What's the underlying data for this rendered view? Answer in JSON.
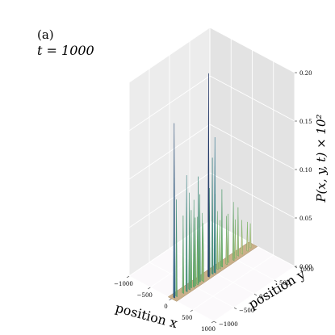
{
  "panel": {
    "label": "(a)",
    "time_label": "t = 1000"
  },
  "chart_data": {
    "type": "surface3d",
    "title": "",
    "xlabel": "position x",
    "ylabel": "position y",
    "zlabel": "P(x, y, t) × 10²",
    "xlim": [
      -1000,
      1000
    ],
    "ylim": [
      -1000,
      1000
    ],
    "zlim": [
      0,
      0.2
    ],
    "x_ticks": [
      "−1000",
      "−500",
      "0",
      "500",
      "1000"
    ],
    "y_ticks": [
      "−1000",
      "−500",
      "0",
      "500",
      "1000"
    ],
    "z_ticks": [
      "0.00",
      "0.05",
      "0.10",
      "0.15",
      "0.20"
    ],
    "grid": true,
    "colormap": "gist_earth",
    "support": {
      "x_range": [
        -80,
        120
      ],
      "y_range": [
        -1000,
        1000
      ]
    },
    "peaks": [
      {
        "x": 15,
        "y": -950,
        "z": 0.18
      },
      {
        "x": 20,
        "y": -900,
        "z": 0.1
      },
      {
        "x": 45,
        "y": -760,
        "z": 0.08
      },
      {
        "x": 60,
        "y": -690,
        "z": 0.12
      },
      {
        "x": 60,
        "y": -620,
        "z": 0.1
      },
      {
        "x": 45,
        "y": -560,
        "z": 0.08
      },
      {
        "x": 70,
        "y": -520,
        "z": 0.09
      },
      {
        "x": 55,
        "y": -470,
        "z": 0.07
      },
      {
        "x": 70,
        "y": -430,
        "z": 0.07
      },
      {
        "x": 50,
        "y": -390,
        "z": 0.11
      },
      {
        "x": 40,
        "y": -340,
        "z": 0.09
      },
      {
        "x": 60,
        "y": -300,
        "z": 0.07
      },
      {
        "x": 80,
        "y": -300,
        "z": 0.06
      },
      {
        "x": 65,
        "y": -150,
        "z": 0.21
      },
      {
        "x": 45,
        "y": -110,
        "z": 0.09
      },
      {
        "x": 60,
        "y": -50,
        "z": 0.12
      },
      {
        "x": 70,
        "y": 0,
        "z": 0.14
      },
      {
        "x": 45,
        "y": 30,
        "z": 0.08
      },
      {
        "x": 35,
        "y": 100,
        "z": 0.06
      },
      {
        "x": 55,
        "y": 140,
        "z": 0.05
      },
      {
        "x": 45,
        "y": 200,
        "z": 0.08
      },
      {
        "x": 60,
        "y": 300,
        "z": 0.05
      },
      {
        "x": 40,
        "y": 360,
        "z": 0.05
      },
      {
        "x": 70,
        "y": 460,
        "z": 0.06
      },
      {
        "x": 55,
        "y": 520,
        "z": 0.04
      },
      {
        "x": 45,
        "y": 600,
        "z": 0.05
      },
      {
        "x": 60,
        "y": 680,
        "z": 0.035
      },
      {
        "x": 75,
        "y": 800,
        "z": 0.03
      },
      {
        "x": 50,
        "y": 900,
        "z": 0.025
      }
    ]
  }
}
